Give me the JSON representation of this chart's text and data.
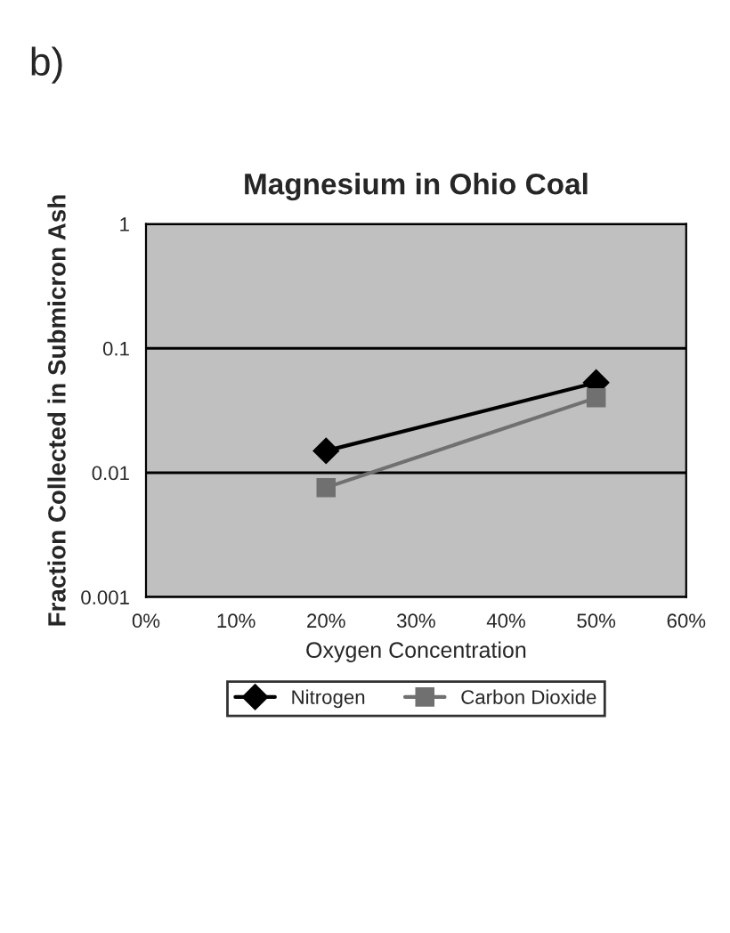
{
  "chart_data": {
    "type": "line",
    "title": "Magnesium in Ohio Coal",
    "xlabel": "Oxygen Concentration",
    "ylabel": "Fraction Collected in Submicron Ash",
    "annotations": [
      "b)"
    ],
    "x": [
      20,
      50
    ],
    "series": [
      {
        "name": "Nitrogen",
        "color": "#000000",
        "marker": "diamond",
        "values": [
          0.015,
          0.053
        ]
      },
      {
        "name": "Carbon Dioxide",
        "color": "#707070",
        "marker": "square",
        "values": [
          0.0076,
          0.04
        ]
      }
    ],
    "log": "y",
    "xlim": [
      0,
      60
    ],
    "xticks": [
      {
        "value": 0,
        "label": "0%"
      },
      {
        "value": 10,
        "label": "10%"
      },
      {
        "value": 20,
        "label": "20%"
      },
      {
        "value": 30,
        "label": "30%"
      },
      {
        "value": 40,
        "label": "40%"
      },
      {
        "value": 50,
        "label": "50%"
      },
      {
        "value": 60,
        "label": "60%"
      }
    ],
    "ylim": [
      0.001,
      1
    ],
    "yticks": [
      0.001,
      0.01,
      0.1,
      1
    ],
    "grid": "y",
    "legend": "bottom"
  }
}
